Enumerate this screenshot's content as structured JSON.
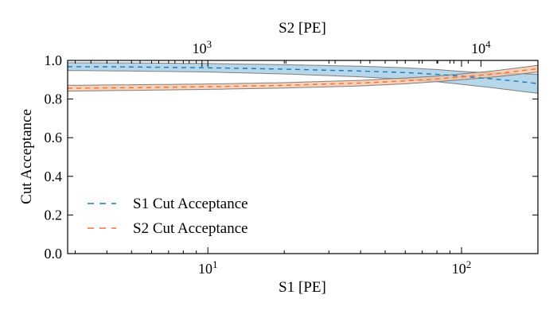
{
  "chart_data": {
    "type": "line",
    "xlabel": "S1 [PE]",
    "x2label": "S2 [PE]",
    "ylabel": "Cut Acceptance",
    "xscale": "log",
    "x2scale": "log",
    "xlim": [
      2.8,
      200
    ],
    "x2lim": [
      330,
      16000
    ],
    "ylim": [
      0.0,
      1.0
    ],
    "yticks": [
      "0.0",
      "0.2",
      "0.4",
      "0.6",
      "0.8",
      "1.0"
    ],
    "xticks": [
      {
        "base": "10",
        "exp": "1"
      },
      {
        "base": "10",
        "exp": "2"
      }
    ],
    "x2ticks": [
      {
        "base": "10",
        "exp": "3"
      },
      {
        "base": "10",
        "exp": "4"
      }
    ],
    "grid": false,
    "legend_position": "lower-left",
    "series": [
      {
        "name": "S1 Cut Acceptance",
        "color": "#1f77b4",
        "band_color": "#9ecae1",
        "x": [
          2.8,
          5,
          10,
          20,
          40,
          60,
          80,
          100,
          130,
          160,
          200
        ],
        "y": [
          0.968,
          0.966,
          0.962,
          0.955,
          0.945,
          0.937,
          0.928,
          0.918,
          0.905,
          0.894,
          0.88
        ],
        "lower": [
          0.948,
          0.945,
          0.94,
          0.93,
          0.915,
          0.903,
          0.89,
          0.876,
          0.86,
          0.845,
          0.83
        ],
        "upper": [
          0.988,
          0.987,
          0.984,
          0.978,
          0.97,
          0.962,
          0.953,
          0.943,
          0.935,
          0.932,
          0.928
        ]
      },
      {
        "name": "S2 Cut Acceptance",
        "color": "#e8743b",
        "band_color": "#f7c29e",
        "x": [
          2.8,
          5,
          10,
          20,
          40,
          60,
          80,
          100,
          130,
          160,
          200
        ],
        "y": [
          0.856,
          0.859,
          0.864,
          0.871,
          0.883,
          0.894,
          0.904,
          0.915,
          0.928,
          0.942,
          0.957
        ],
        "lower": [
          0.841,
          0.845,
          0.85,
          0.857,
          0.868,
          0.879,
          0.89,
          0.9,
          0.912,
          0.925,
          0.94
        ],
        "upper": [
          0.871,
          0.874,
          0.878,
          0.885,
          0.897,
          0.909,
          0.919,
          0.93,
          0.944,
          0.958,
          0.975
        ]
      }
    ]
  }
}
